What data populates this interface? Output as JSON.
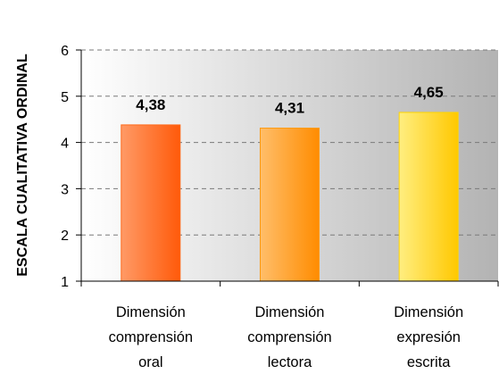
{
  "chart_data": {
    "type": "bar",
    "title": "",
    "xlabel": "",
    "ylabel": "ESCALA CUALITATIVA ORDINAL",
    "ylim": [
      1,
      6
    ],
    "yticks": [
      "1",
      "2",
      "3",
      "4",
      "5",
      "6"
    ],
    "grid": true,
    "categories": [
      [
        "Dimensión",
        "comprensión",
        "oral"
      ],
      [
        "Dimensión",
        "comprensión",
        "lectora"
      ],
      [
        "Dimensión",
        "expresión",
        "escrita"
      ]
    ],
    "values": [
      4.38,
      4.31,
      4.65
    ],
    "data_labels": [
      "4,38",
      "4,31",
      "4,65"
    ],
    "colors": [
      "#ff6a1a",
      "#ff9a10",
      "#ffd400"
    ]
  }
}
